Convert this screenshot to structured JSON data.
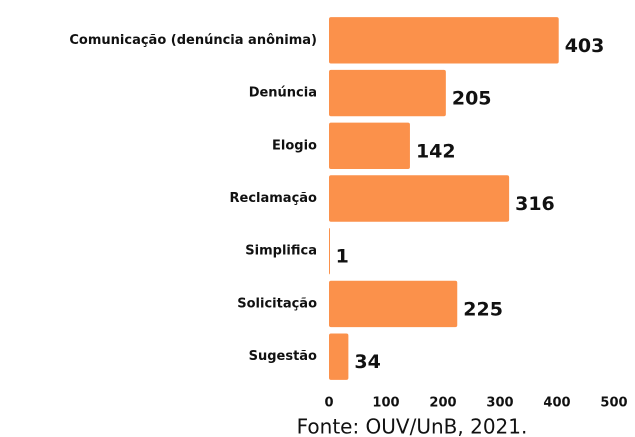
{
  "chart_data": {
    "type": "barh",
    "categories": [
      "Comunicação (denúncia anônima)",
      "Denúncia",
      "Elogio",
      "Reclamação",
      "Simplifica",
      "Solicitação",
      "Sugestão"
    ],
    "values": [
      403,
      205,
      142,
      316,
      1,
      225,
      34
    ],
    "color": "#fb914b",
    "xlim": [
      0,
      500
    ],
    "xticks": [
      0,
      100,
      200,
      300,
      400,
      500
    ],
    "grid": false,
    "source": "Fonte: OUV/UnB, 2021."
  }
}
